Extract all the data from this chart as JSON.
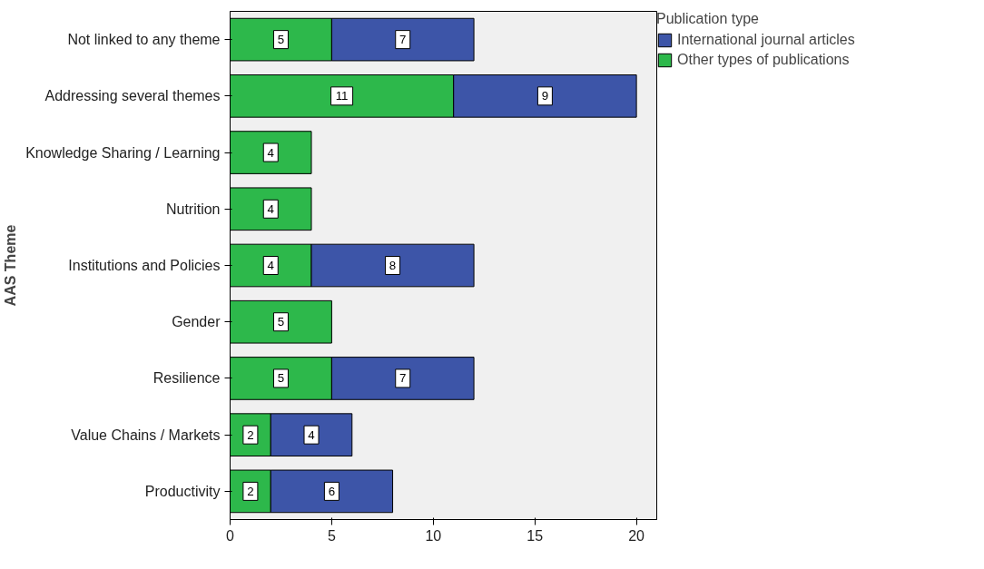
{
  "chart_data": {
    "type": "bar",
    "orientation": "horizontal",
    "stacked": true,
    "ylabel": "AAS Theme",
    "legend_title": "Publication type",
    "legend": "top right",
    "grid": false,
    "data_labels": true,
    "categories": [
      "Not linked to any theme",
      "Addressing several themes",
      "Knowledge Sharing / Learning",
      "Nutrition",
      "Institutions and Policies",
      "Gender",
      "Resilience",
      "Value Chains / Markets",
      "Productivity"
    ],
    "xlim": [
      0,
      21
    ],
    "xticks": [
      0,
      5,
      10,
      15,
      20
    ],
    "series": [
      {
        "name": "Other types of publications",
        "color": "#2db84b",
        "values": [
          5,
          11,
          4,
          4,
          4,
          5,
          5,
          2,
          2
        ]
      },
      {
        "name": "International journal articles",
        "color": "#3d55a8",
        "values": [
          7,
          9,
          null,
          null,
          8,
          null,
          7,
          4,
          6
        ]
      }
    ]
  }
}
